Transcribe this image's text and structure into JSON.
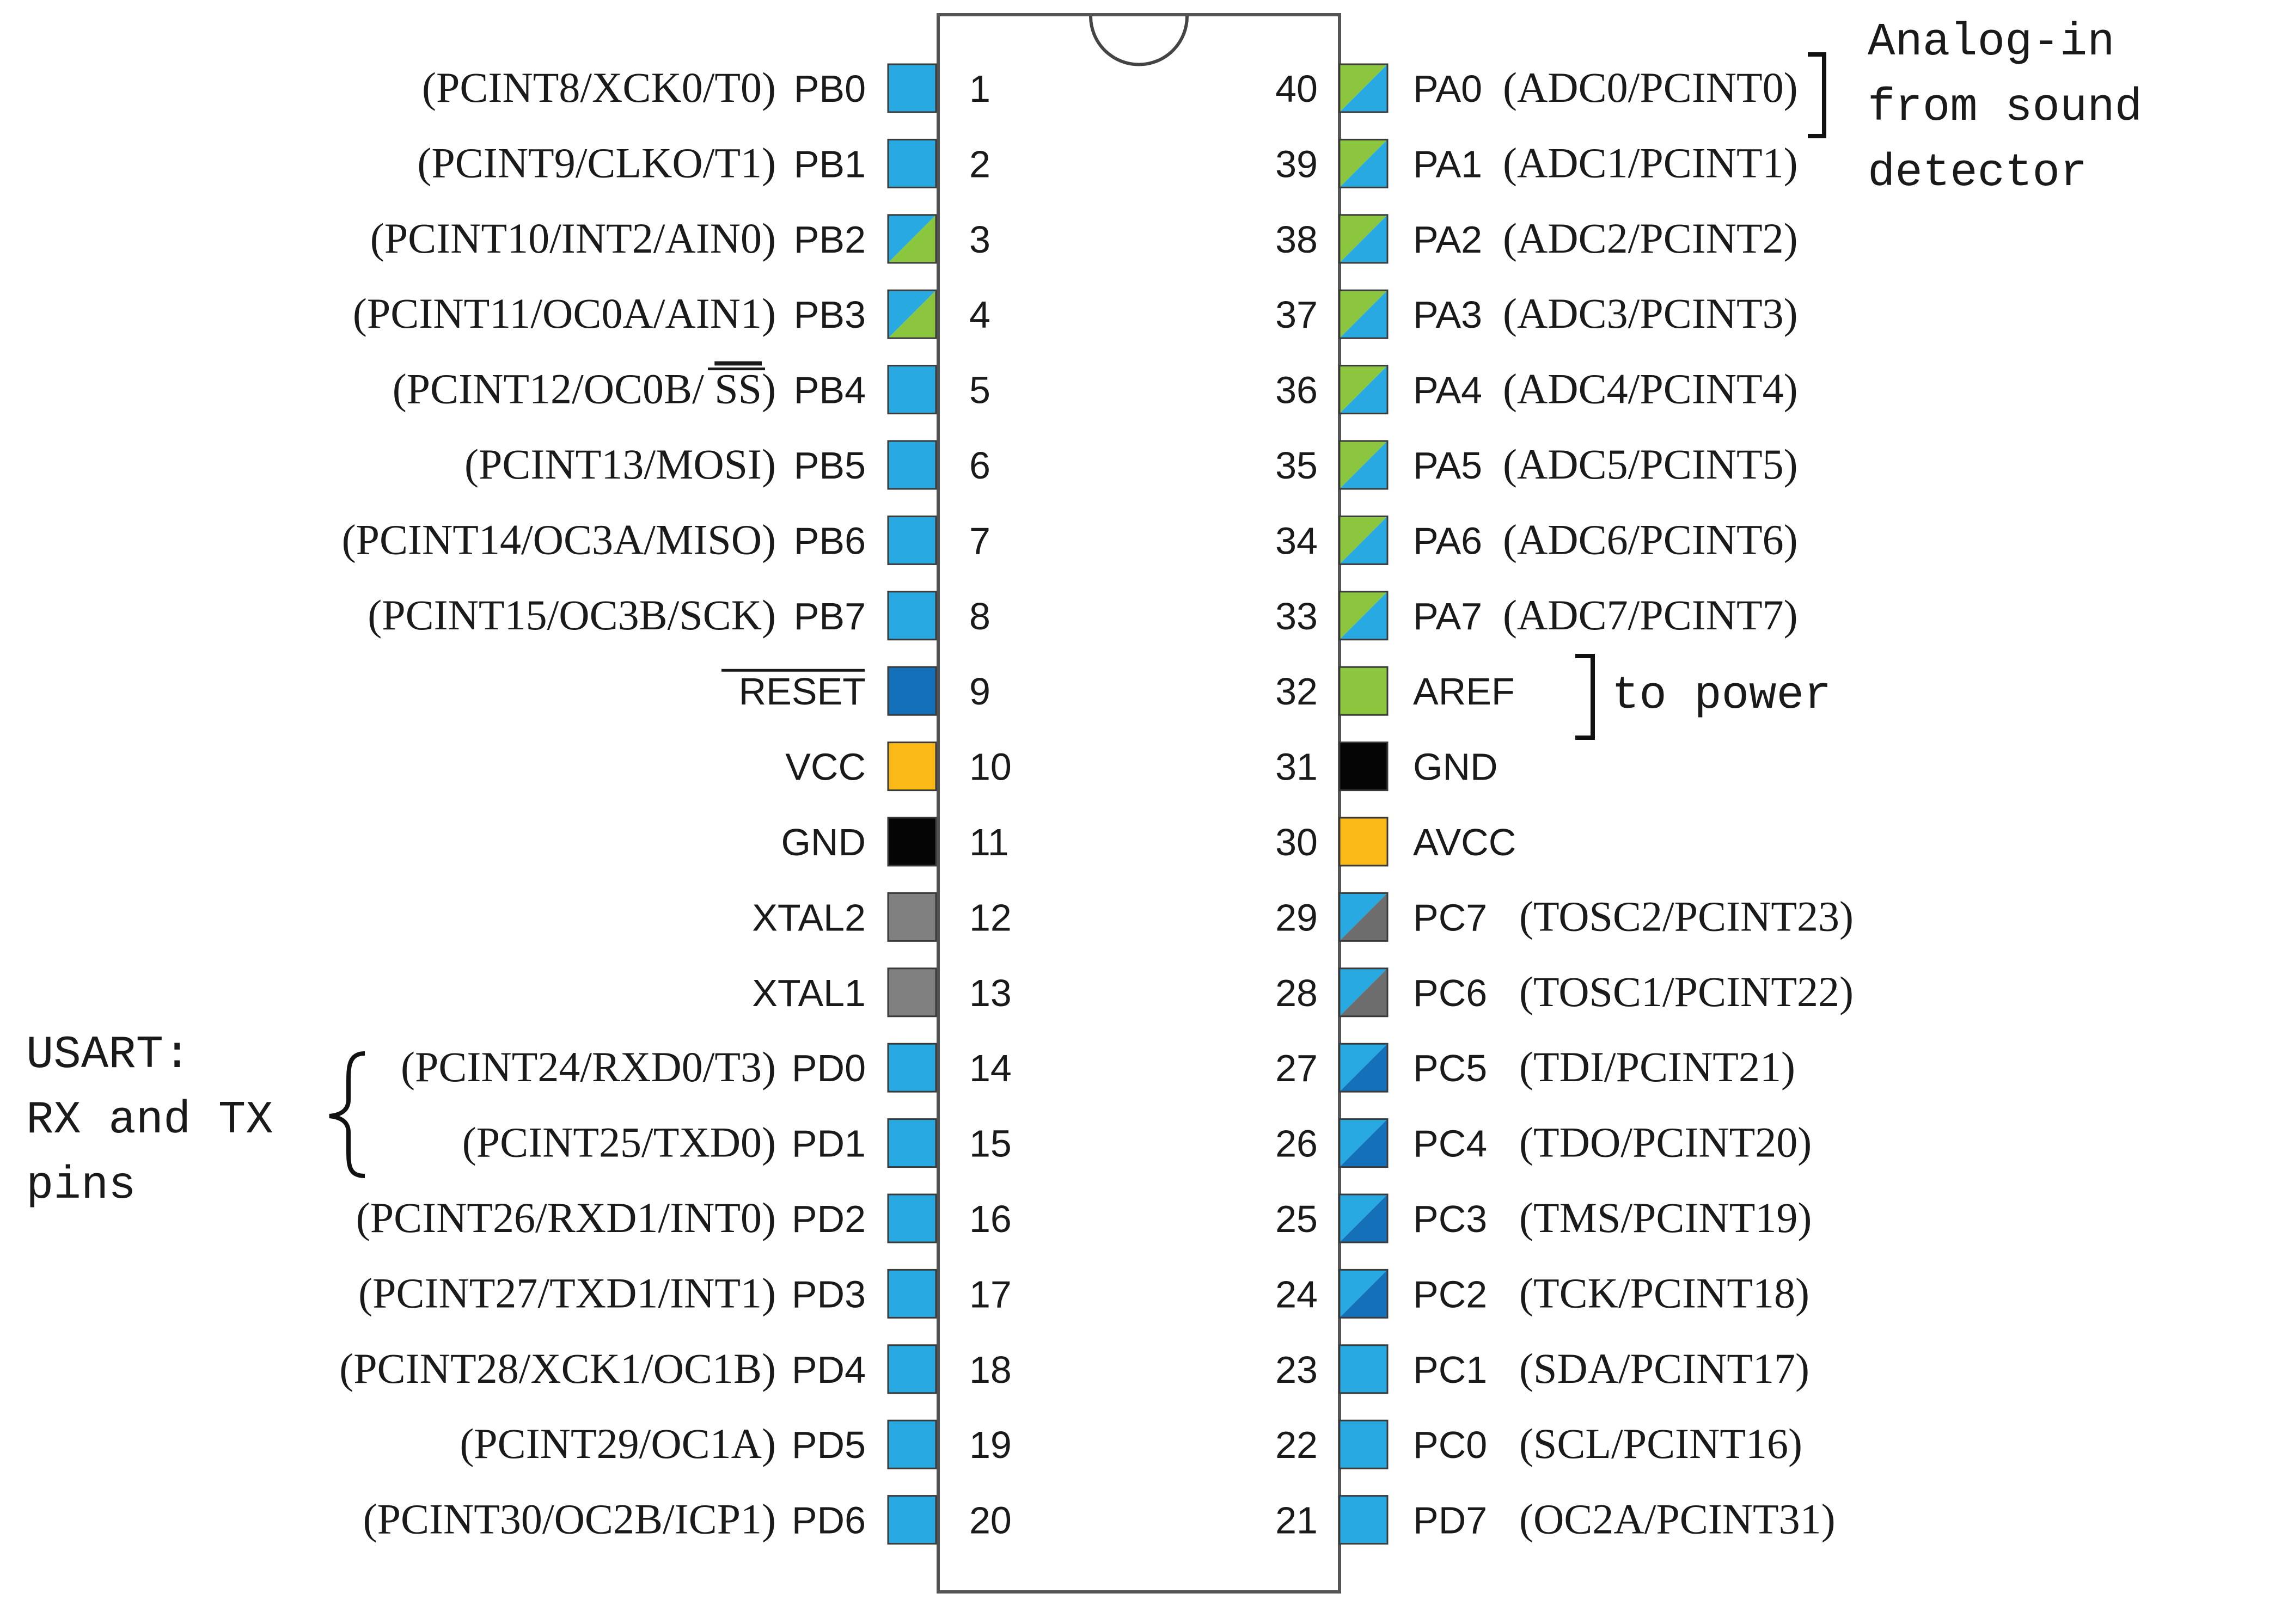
{
  "colors": {
    "io": "#29a9e1",
    "analog": "#8cc63f",
    "reset": "#1570ba",
    "power": "#fbb917",
    "ground": "#050505",
    "crystal": "#808080",
    "jtag": "#1570ba",
    "osc": "#6d6d6d"
  },
  "left_pins": [
    {
      "number": "1",
      "name": "PB0",
      "alt": "(PCINT8/XCK0/T0)",
      "type": "io"
    },
    {
      "number": "2",
      "name": "PB1",
      "alt": "(PCINT9/CLKO/T1)",
      "type": "io"
    },
    {
      "number": "3",
      "name": "PB2",
      "alt": "(PCINT10/INT2/AIN0)",
      "type": "io-analog"
    },
    {
      "number": "4",
      "name": "PB3",
      "alt": "(PCINT11/OC0A/AIN1)",
      "type": "io-analog"
    },
    {
      "number": "5",
      "name": "PB4",
      "alt": "(PCINT12/OC0B/",
      "alt_over": "SS",
      "alt_tail": ")",
      "type": "io"
    },
    {
      "number": "6",
      "name": "PB5",
      "alt": "(PCINT13/MOSI)",
      "type": "io"
    },
    {
      "number": "7",
      "name": "PB6",
      "alt": "(PCINT14/OC3A/MISO)",
      "type": "io"
    },
    {
      "number": "8",
      "name": "PB7",
      "alt": "(PCINT15/OC3B/SCK)",
      "type": "io"
    },
    {
      "number": "9",
      "name": "RESET",
      "alt": "",
      "type": "reset",
      "overline": true
    },
    {
      "number": "10",
      "name": "VCC",
      "alt": "",
      "type": "power"
    },
    {
      "number": "11",
      "name": "GND",
      "alt": "",
      "type": "ground"
    },
    {
      "number": "12",
      "name": "XTAL2",
      "alt": "",
      "type": "crystal"
    },
    {
      "number": "13",
      "name": "XTAL1",
      "alt": "",
      "type": "crystal"
    },
    {
      "number": "14",
      "name": "PD0",
      "alt": "(PCINT24/RXD0/T3)",
      "type": "io"
    },
    {
      "number": "15",
      "name": "PD1",
      "alt": "(PCINT25/TXD0)",
      "type": "io"
    },
    {
      "number": "16",
      "name": "PD2",
      "alt": "(PCINT26/RXD1/INT0)",
      "type": "io"
    },
    {
      "number": "17",
      "name": "PD3",
      "alt": "(PCINT27/TXD1/INT1)",
      "type": "io"
    },
    {
      "number": "18",
      "name": "PD4",
      "alt": "(PCINT28/XCK1/OC1B)",
      "type": "io"
    },
    {
      "number": "19",
      "name": "PD5",
      "alt": "(PCINT29/OC1A)",
      "type": "io"
    },
    {
      "number": "20",
      "name": "PD6",
      "alt": "(PCINT30/OC2B/ICP1)",
      "type": "io"
    }
  ],
  "right_pins": [
    {
      "number": "40",
      "name": "PA0",
      "alt": "(ADC0/PCINT0)",
      "type": "analog-io"
    },
    {
      "number": "39",
      "name": "PA1",
      "alt": "(ADC1/PCINT1)",
      "type": "analog-io"
    },
    {
      "number": "38",
      "name": "PA2",
      "alt": "(ADC2/PCINT2)",
      "type": "analog-io"
    },
    {
      "number": "37",
      "name": "PA3",
      "alt": "(ADC3/PCINT3)",
      "type": "analog-io"
    },
    {
      "number": "36",
      "name": "PA4",
      "alt": "(ADC4/PCINT4)",
      "type": "analog-io"
    },
    {
      "number": "35",
      "name": "PA5",
      "alt": "(ADC5/PCINT5)",
      "type": "analog-io"
    },
    {
      "number": "34",
      "name": "PA6",
      "alt": "(ADC6/PCINT6)",
      "type": "analog-io"
    },
    {
      "number": "33",
      "name": "PA7",
      "alt": "(ADC7/PCINT7)",
      "type": "analog-io"
    },
    {
      "number": "32",
      "name": "AREF",
      "alt": "",
      "type": "analog"
    },
    {
      "number": "31",
      "name": "GND",
      "alt": "",
      "type": "ground"
    },
    {
      "number": "30",
      "name": "AVCC",
      "alt": "",
      "type": "power"
    },
    {
      "number": "29",
      "name": "PC7",
      "alt": "(TOSC2/PCINT23)",
      "type": "io-osc"
    },
    {
      "number": "28",
      "name": "PC6",
      "alt": "(TOSC1/PCINT22)",
      "type": "io-osc"
    },
    {
      "number": "27",
      "name": "PC5",
      "alt": "(TDI/PCINT21)",
      "type": "io-jtag"
    },
    {
      "number": "26",
      "name": "PC4",
      "alt": "(TDO/PCINT20)",
      "type": "io-jtag"
    },
    {
      "number": "25",
      "name": "PC3",
      "alt": "(TMS/PCINT19)",
      "type": "io-jtag"
    },
    {
      "number": "24",
      "name": "PC2",
      "alt": "(TCK/PCINT18)",
      "type": "io-jtag"
    },
    {
      "number": "23",
      "name": "PC1",
      "alt": "(SDA/PCINT17)",
      "type": "io"
    },
    {
      "number": "22",
      "name": "PC0",
      "alt": "(SCL/PCINT16)",
      "type": "io"
    },
    {
      "number": "21",
      "name": "PD7",
      "alt": "(OC2A/PCINT31)",
      "type": "io"
    }
  ],
  "annotations": {
    "analog_note": [
      "Analog-in",
      "from sound",
      "detector"
    ],
    "power_note": "to power",
    "usart_note": [
      "USART:",
      "RX and TX",
      "pins"
    ]
  }
}
